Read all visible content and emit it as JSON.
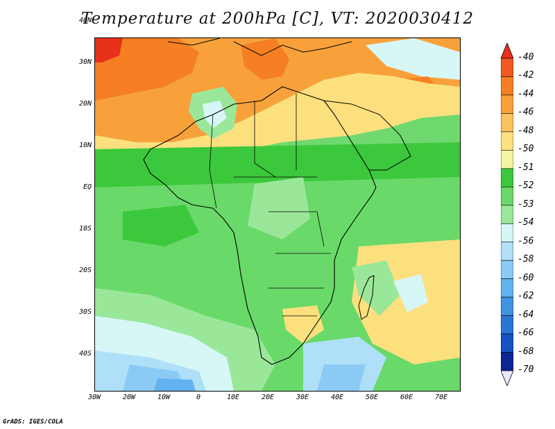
{
  "title": "Temperature at 200hPa [C], VT: 2020030412",
  "credit": "GrADS: IGES/COLA",
  "lat_labels": [
    "40N",
    "30N",
    "20N",
    "10N",
    "EQ",
    "10S",
    "20S",
    "30S",
    "40S"
  ],
  "lon_labels": [
    "30W",
    "20W",
    "10W",
    "0",
    "10E",
    "20E",
    "30E",
    "40E",
    "50E",
    "60E",
    "70E"
  ],
  "colorbar": {
    "levels": [
      "-40",
      "-42",
      "-44",
      "-46",
      "-48",
      "-50",
      "-51",
      "-52",
      "-53",
      "-54",
      "-56",
      "-58",
      "-60",
      "-62",
      "-64",
      "-66",
      "-68",
      "-70"
    ],
    "colors": [
      "#e8311a",
      "#f05a20",
      "#f57f22",
      "#f8a13a",
      "#fbc25c",
      "#fde07e",
      "#f5f5a0",
      "#3cc83c",
      "#69d969",
      "#9ae79a",
      "#d7f7f7",
      "#afe0f8",
      "#8ccaf6",
      "#64b2f0",
      "#4093e3",
      "#2a74d6",
      "#1652c2",
      "#0c2596",
      "#e8e8ff"
    ]
  }
}
